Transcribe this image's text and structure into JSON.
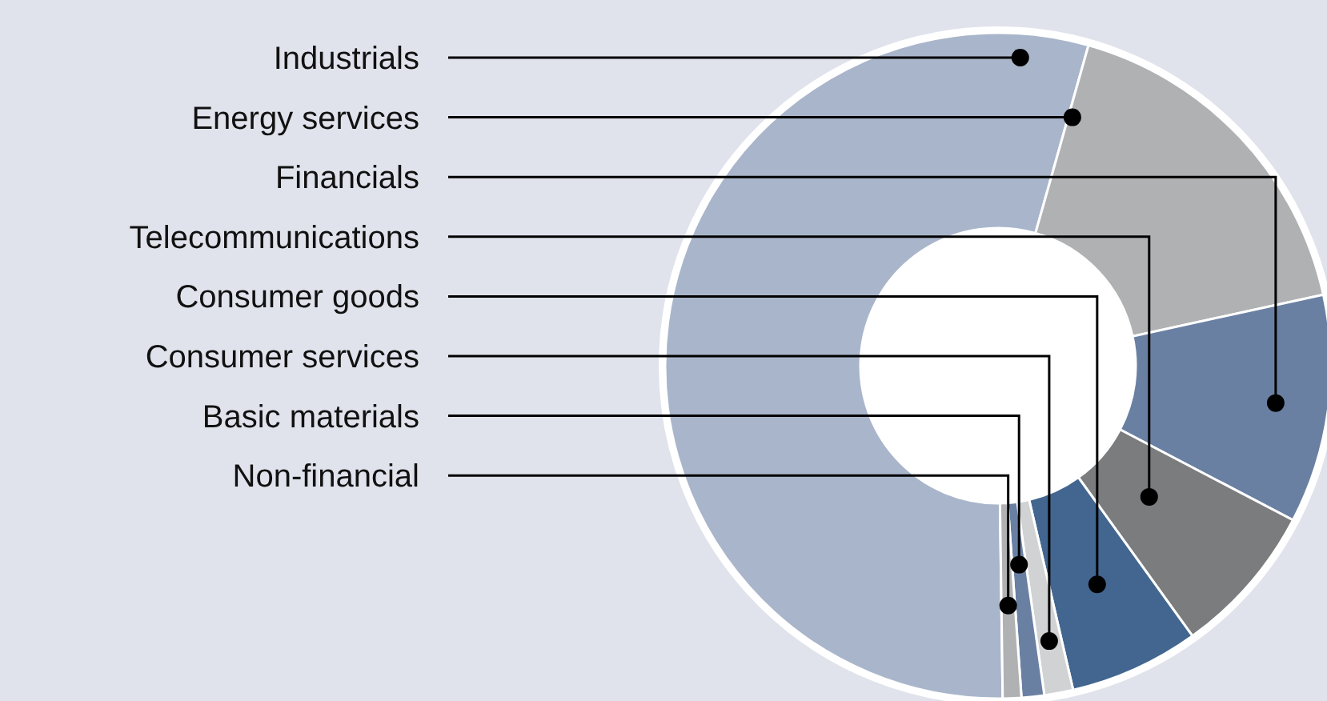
{
  "chart_data": {
    "type": "donut",
    "categories": [
      "Industrials",
      "Energy services",
      "Financials",
      "Telecommunications",
      "Consumer goods",
      "Consumer services",
      "Basic materials",
      "Non-financial"
    ],
    "values": [
      54.6,
      17.2,
      11.1,
      7.4,
      6.3,
      1.4,
      1.1,
      0.9
    ],
    "colors": [
      "#a9b5ca",
      "#b0b1b3",
      "#6a80a3",
      "#7b7c7e",
      "#42668f",
      "#d1d2d4",
      "#6a80a3",
      "#b0b1b3"
    ]
  }
}
